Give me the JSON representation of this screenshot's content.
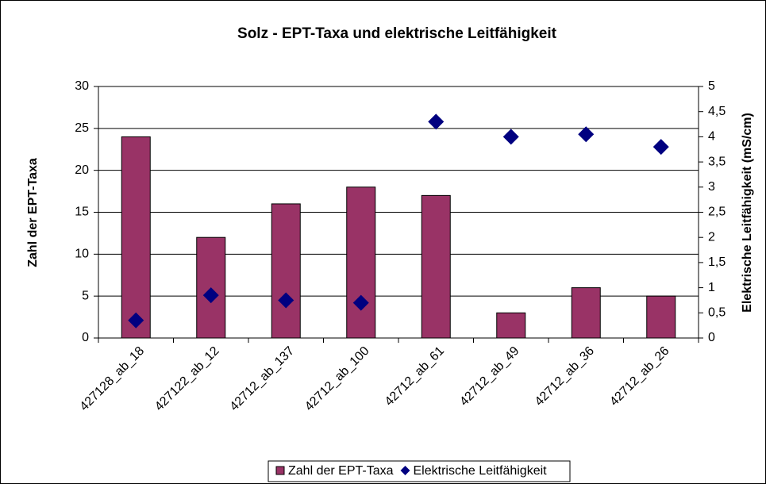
{
  "chart_data": {
    "type": "bar",
    "title": "Solz - EPT-Taxa und elektrische Leitfähigkeit",
    "ylabel": "Zahl der EPT-Taxa",
    "y2label": "Elektrische Leitfähigkeit (mS/cm)",
    "categories": [
      "427128_ab_18",
      "427122_ab_12",
      "42712_ab_137",
      "42712_ab_100",
      "42712_ab_61",
      "42712_ab_49",
      "42712_ab_36",
      "42712_ab_26"
    ],
    "series": [
      {
        "name": "Zahl der EPT-Taxa",
        "type": "bar",
        "color": "#993366",
        "values": [
          24,
          12,
          16,
          18,
          17,
          3,
          6,
          5
        ]
      },
      {
        "name": "Elektrische Leitfähigkeit",
        "type": "scatter",
        "axis": "y2",
        "color": "#000080",
        "values": [
          0.35,
          0.85,
          0.75,
          0.7,
          4.3,
          4.0,
          4.05,
          3.8
        ]
      }
    ],
    "ylim": [
      0,
      30
    ],
    "yticks": [
      0,
      5,
      10,
      15,
      20,
      25,
      30
    ],
    "y2lim": [
      0,
      5
    ],
    "y2ticks": [
      0,
      {
        "value": 0.5,
        "label": "0,5"
      },
      1,
      {
        "value": 1.5,
        "label": "1,5"
      },
      2,
      {
        "value": 2.5,
        "label": "2,5"
      },
      3,
      {
        "value": 3.5,
        "label": "3,5"
      },
      4,
      {
        "value": 4.5,
        "label": "4,5"
      },
      5
    ],
    "grid": true,
    "legend": "bottom"
  }
}
